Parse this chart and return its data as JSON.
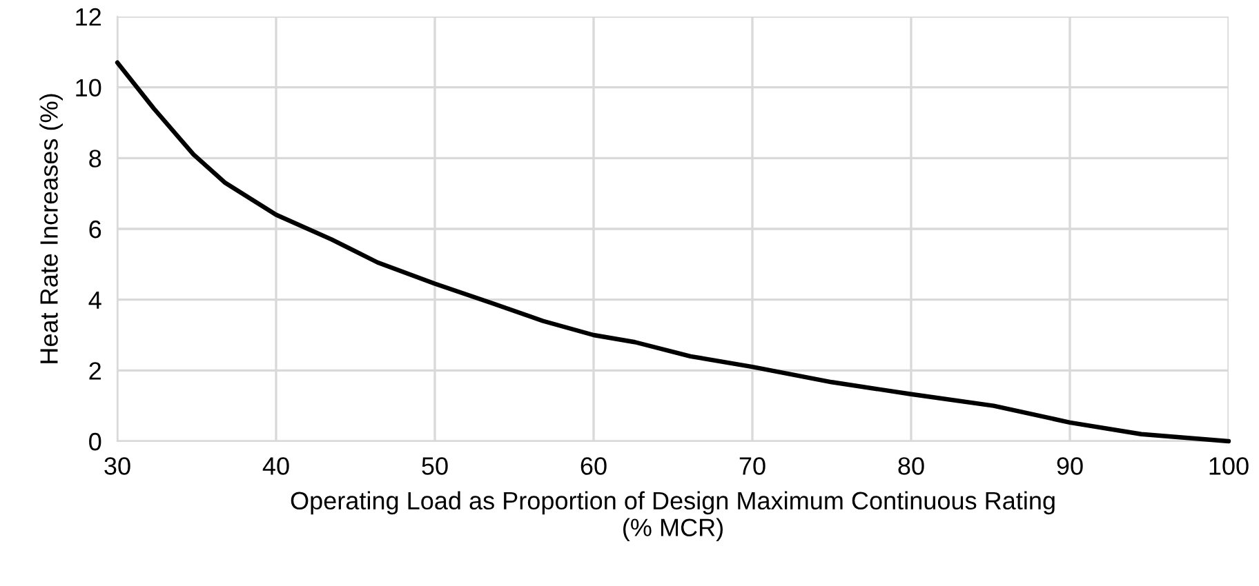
{
  "chart_data": {
    "type": "line",
    "xlabel": "Operating Load as Proportion of Design Maximum Continuous Rating\n(% MCR)",
    "ylabel": "Heat Rate Increases (%)",
    "series": [
      {
        "color": "#000000",
        "x": [
          30,
          32.3,
          34.8,
          36.8,
          40,
          43.5,
          46.4,
          50,
          53.6,
          56.8,
          60,
          62.6,
          66.1,
          70,
          75,
          80,
          85.2,
          90,
          94.5,
          100
        ],
        "values": [
          10.7,
          9.4,
          8.1,
          7.3,
          6.4,
          5.7,
          5.05,
          4.45,
          3.9,
          3.4,
          3.0,
          2.8,
          2.4,
          2.1,
          1.67,
          1.33,
          1.0,
          0.53,
          0.2,
          0
        ]
      }
    ],
    "xlim": [
      30,
      100
    ],
    "xticks": [
      30,
      40,
      50,
      60,
      70,
      80,
      90,
      100
    ],
    "ylim": [
      0,
      12
    ],
    "yticks": [
      0,
      2,
      4,
      6,
      8,
      10,
      12
    ],
    "grid": true,
    "line_style": "solid",
    "marker": "none"
  }
}
